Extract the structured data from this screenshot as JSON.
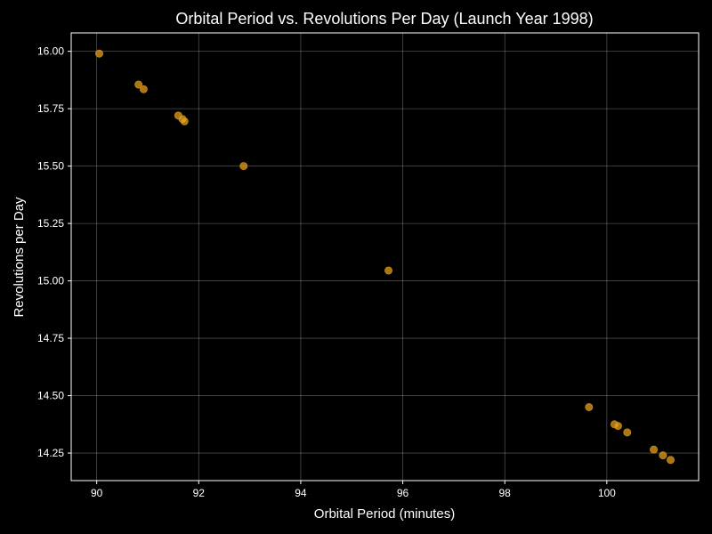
{
  "chart_data": {
    "type": "scatter",
    "title": "Orbital Period vs. Revolutions Per Day (Launch Year 1998)",
    "xlabel": "Orbital Period (minutes)",
    "ylabel": "Revolutions per Day",
    "xlim": [
      89.5,
      101.8
    ],
    "ylim": [
      14.13,
      16.08
    ],
    "xticks": [
      90,
      92,
      94,
      96,
      98,
      100
    ],
    "xtick_labels": [
      "90",
      "92",
      "94",
      "96",
      "98",
      "100"
    ],
    "yticks": [
      14.25,
      14.5,
      14.75,
      15.0,
      15.25,
      15.5,
      15.75,
      16.0
    ],
    "ytick_labels": [
      "14.25",
      "14.50",
      "14.75",
      "15.00",
      "15.25",
      "15.50",
      "15.75",
      "16.00"
    ],
    "grid": true,
    "colors": {
      "background": "#000000",
      "point_fill": "#f5a623",
      "point_stroke": "#b8860b",
      "text": "#ffffff"
    },
    "points": [
      {
        "x": 90.05,
        "y": 15.99
      },
      {
        "x": 90.82,
        "y": 15.855
      },
      {
        "x": 90.92,
        "y": 15.835
      },
      {
        "x": 91.6,
        "y": 15.72
      },
      {
        "x": 91.68,
        "y": 15.705
      },
      {
        "x": 91.72,
        "y": 15.695
      },
      {
        "x": 92.88,
        "y": 15.5
      },
      {
        "x": 95.72,
        "y": 15.045
      },
      {
        "x": 99.65,
        "y": 14.45
      },
      {
        "x": 100.15,
        "y": 14.375
      },
      {
        "x": 100.22,
        "y": 14.368
      },
      {
        "x": 100.4,
        "y": 14.34
      },
      {
        "x": 100.92,
        "y": 14.265
      },
      {
        "x": 101.1,
        "y": 14.24
      },
      {
        "x": 101.25,
        "y": 14.22
      }
    ]
  }
}
